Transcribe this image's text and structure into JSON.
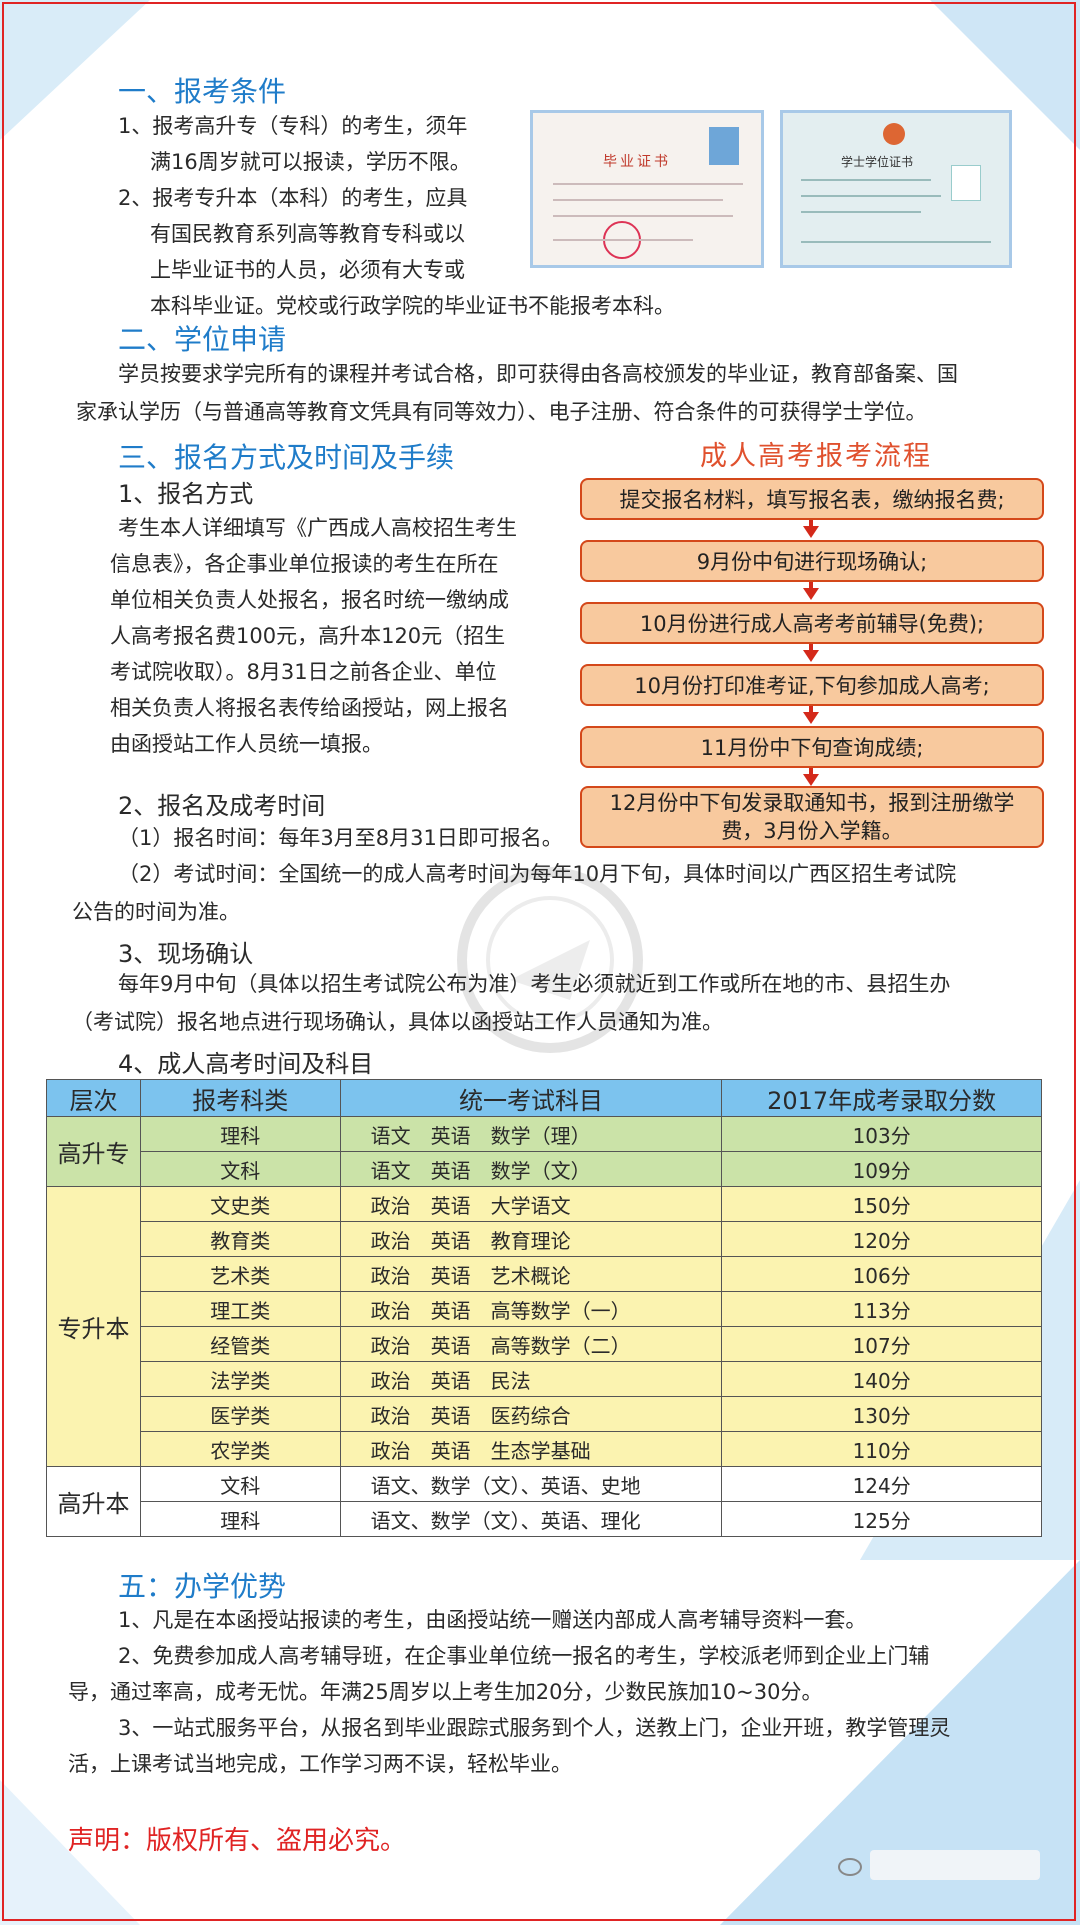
{
  "s1": {
    "title": "一、报考条件",
    "l1a": "1、报考高升专（专科）的考生，须年",
    "l1b": "满16周岁就可以报读，学历不限。",
    "l2a": "2、报考专升本（本科）的考生，应具",
    "l2b": "有国民教育系列高等教育专科或以",
    "l2c": "上毕业证书的人员，必须有大专或",
    "l2d": "本科毕业证。党校或行政学院的毕业证书不能报考本科。"
  },
  "cert1": {
    "title": "毕业证书"
  },
  "cert2": {
    "title": "学士学位证书"
  },
  "s2": {
    "title": "二、学位申请",
    "p1": "学员按要求学完所有的课程并考试合格，即可获得由各高校颁发的毕业证，教育部备案、国",
    "p2": "家承认学历（与普通高等教育文凭具有同等效力）、电子注册、符合条件的可获得学士学位。"
  },
  "s3": {
    "title": "三、报名方式及时间及手续",
    "sub1": "1、报名方式",
    "p1": [
      "考生本人详细填写《广西成人高校招生考生",
      "信息表》，各企事业单位报读的考生在所在",
      "单位相关负责人处报名，报名时统一缴纳成",
      "人高考报名费100元，高升本120元（招生",
      "考试院收取）。8月31日之前各企业、单位",
      "相关负责人将报名表传给函授站，网上报名",
      "由函授站工作人员统一填报。"
    ],
    "sub2": "2、报名及成考时间",
    "t1": "（1）报名时间：每年3月至8月31日即可报名。",
    "t2a": "（2）考试时间：全国统一的成人高考时间为每年10月下旬，具体时间以广西区招生考试院",
    "t2b": "公告的时间为准。",
    "sub3": "3、现场确认",
    "c1": "每年9月中旬（具体以招生考试院公布为准）考生必须就近到工作或所在地的市、县招生办",
    "c2": "（考试院）报名地点进行现场确认，具体以函授站工作人员通知为准。",
    "sub4": "4、成人高考时间及科目"
  },
  "flow": {
    "title": "成人高考报考流程",
    "steps": [
      "提交报名材料，填写报名表，缴纳报名费;",
      "9月份中旬进行现场确认;",
      "10月份进行成人高考考前辅导(免费);",
      "10月份打印准考证,下旬参加成人高考;",
      "11月份中下旬查询成绩;",
      "12月份中下旬发录取通知书，报到注册缴学费，3月份入学籍。"
    ]
  },
  "table": {
    "headers": [
      "层次",
      "报考科类",
      "统一考试科目",
      "2017年成考录取分数"
    ],
    "groups": [
      "高升专",
      "专升本",
      "高升本"
    ],
    "rows": [
      {
        "cat": "理科",
        "subj": "语文　英语　数学（理）",
        "score": "103分"
      },
      {
        "cat": "文科",
        "subj": "语文　英语　数学（文）",
        "score": "109分"
      },
      {
        "cat": "文史类",
        "subj": "政治　英语　大学语文",
        "score": "150分"
      },
      {
        "cat": "教育类",
        "subj": "政治　英语　教育理论",
        "score": "120分"
      },
      {
        "cat": "艺术类",
        "subj": "政治　英语　艺术概论",
        "score": "106分"
      },
      {
        "cat": "理工类",
        "subj": "政治　英语　高等数学（一）",
        "score": "113分"
      },
      {
        "cat": "经管类",
        "subj": "政治　英语　高等数学（二）",
        "score": "107分"
      },
      {
        "cat": "法学类",
        "subj": "政治　英语　民法",
        "score": "140分"
      },
      {
        "cat": "医学类",
        "subj": "政治　英语　医药综合",
        "score": "130分"
      },
      {
        "cat": "农学类",
        "subj": "政治　英语　生态学基础",
        "score": "110分"
      },
      {
        "cat": "文科",
        "subj": "语文、数学（文）、英语、史地",
        "score": "124分"
      },
      {
        "cat": "理科",
        "subj": "语文、数学（文）、英语、理化",
        "score": "125分"
      }
    ]
  },
  "s5": {
    "title": "五：办学优势",
    "p1": "1、凡是在本函授站报读的考生，由函授站统一赠送内部成人高考辅导资料一套。",
    "p2a": "2、免费参加成人高考辅导班，在企事业单位统一报名的考生，学校派老师到企业上门辅",
    "p2b": "导，通过率高，成考无忧。年满25周岁以上考生加20分，少数民族加10~30分。",
    "p3a": "3、一站式服务平台，从报名到毕业跟踪式服务到个人，送教上门，企业开班，教学管理灵",
    "p3b": "活，上课考试当地完成，工作学习两不误，轻松毕业。"
  },
  "statement": "声明：版权所有、盗用必究。",
  "colors": {
    "heading": "#1f7cc9",
    "accent_red": "#e02424",
    "flow_box": "#f8c99e",
    "table_header": "#7cc3ee",
    "row_green": "#cbe3a8",
    "row_yellow": "#fbf3b0"
  }
}
